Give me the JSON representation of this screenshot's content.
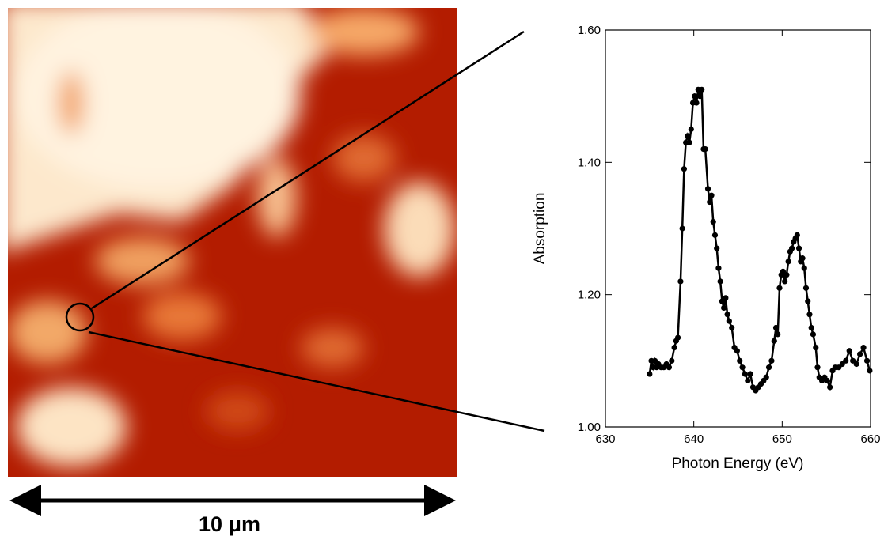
{
  "chart_data": {
    "type": "line",
    "xlabel": "Photon Energy (eV)",
    "ylabel": "Absorption",
    "xlim": [
      630,
      660
    ],
    "xticks": [
      630,
      640,
      650,
      660
    ],
    "ylim": [
      1.0,
      1.6
    ],
    "yticks": [
      {
        "value": 1.0,
        "label": "1.00"
      },
      {
        "value": 1.2,
        "label": "1.20"
      },
      {
        "value": 1.4,
        "label": "1.40"
      },
      {
        "value": 1.6,
        "label": "1.60"
      }
    ],
    "color": "#000000",
    "x": [
      635.0,
      635.2,
      635.4,
      635.6,
      635.8,
      636.0,
      636.3,
      636.6,
      636.9,
      637.2,
      637.5,
      637.8,
      638.0,
      638.2,
      638.5,
      638.7,
      638.9,
      639.1,
      639.3,
      639.5,
      639.7,
      639.9,
      640.1,
      640.3,
      640.5,
      640.7,
      640.9,
      641.1,
      641.3,
      641.6,
      641.8,
      642.0,
      642.2,
      642.4,
      642.6,
      642.8,
      643.0,
      643.2,
      643.4,
      643.6,
      643.8,
      644.0,
      644.3,
      644.6,
      644.9,
      645.2,
      645.5,
      645.8,
      646.1,
      646.4,
      646.7,
      647.0,
      647.3,
      647.6,
      647.9,
      648.2,
      648.5,
      648.8,
      649.1,
      649.3,
      649.5,
      649.7,
      649.9,
      650.1,
      650.3,
      650.5,
      650.7,
      650.9,
      651.1,
      651.3,
      651.5,
      651.7,
      651.9,
      652.1,
      652.3,
      652.5,
      652.7,
      652.9,
      653.1,
      653.3,
      653.5,
      653.8,
      654.0,
      654.2,
      654.5,
      654.8,
      655.1,
      655.4,
      655.7,
      656.0,
      656.4,
      656.8,
      657.2,
      657.6,
      658.0,
      658.4,
      658.8,
      659.2,
      659.6,
      659.9
    ],
    "values": [
      1.08,
      1.1,
      1.09,
      1.1,
      1.09,
      1.095,
      1.09,
      1.09,
      1.095,
      1.09,
      1.1,
      1.12,
      1.13,
      1.135,
      1.22,
      1.3,
      1.39,
      1.43,
      1.44,
      1.43,
      1.45,
      1.49,
      1.5,
      1.49,
      1.51,
      1.5,
      1.51,
      1.42,
      1.42,
      1.36,
      1.34,
      1.35,
      1.31,
      1.29,
      1.27,
      1.24,
      1.22,
      1.19,
      1.18,
      1.195,
      1.17,
      1.16,
      1.15,
      1.12,
      1.115,
      1.1,
      1.09,
      1.08,
      1.07,
      1.08,
      1.06,
      1.055,
      1.06,
      1.065,
      1.07,
      1.075,
      1.09,
      1.1,
      1.13,
      1.15,
      1.14,
      1.21,
      1.23,
      1.235,
      1.22,
      1.23,
      1.25,
      1.265,
      1.27,
      1.28,
      1.285,
      1.29,
      1.27,
      1.25,
      1.255,
      1.24,
      1.21,
      1.19,
      1.17,
      1.15,
      1.14,
      1.12,
      1.09,
      1.075,
      1.07,
      1.075,
      1.07,
      1.06,
      1.085,
      1.09,
      1.09,
      1.095,
      1.1,
      1.115,
      1.1,
      1.095,
      1.11,
      1.12,
      1.1,
      1.085
    ]
  },
  "scale_bar_label": "10 μm"
}
